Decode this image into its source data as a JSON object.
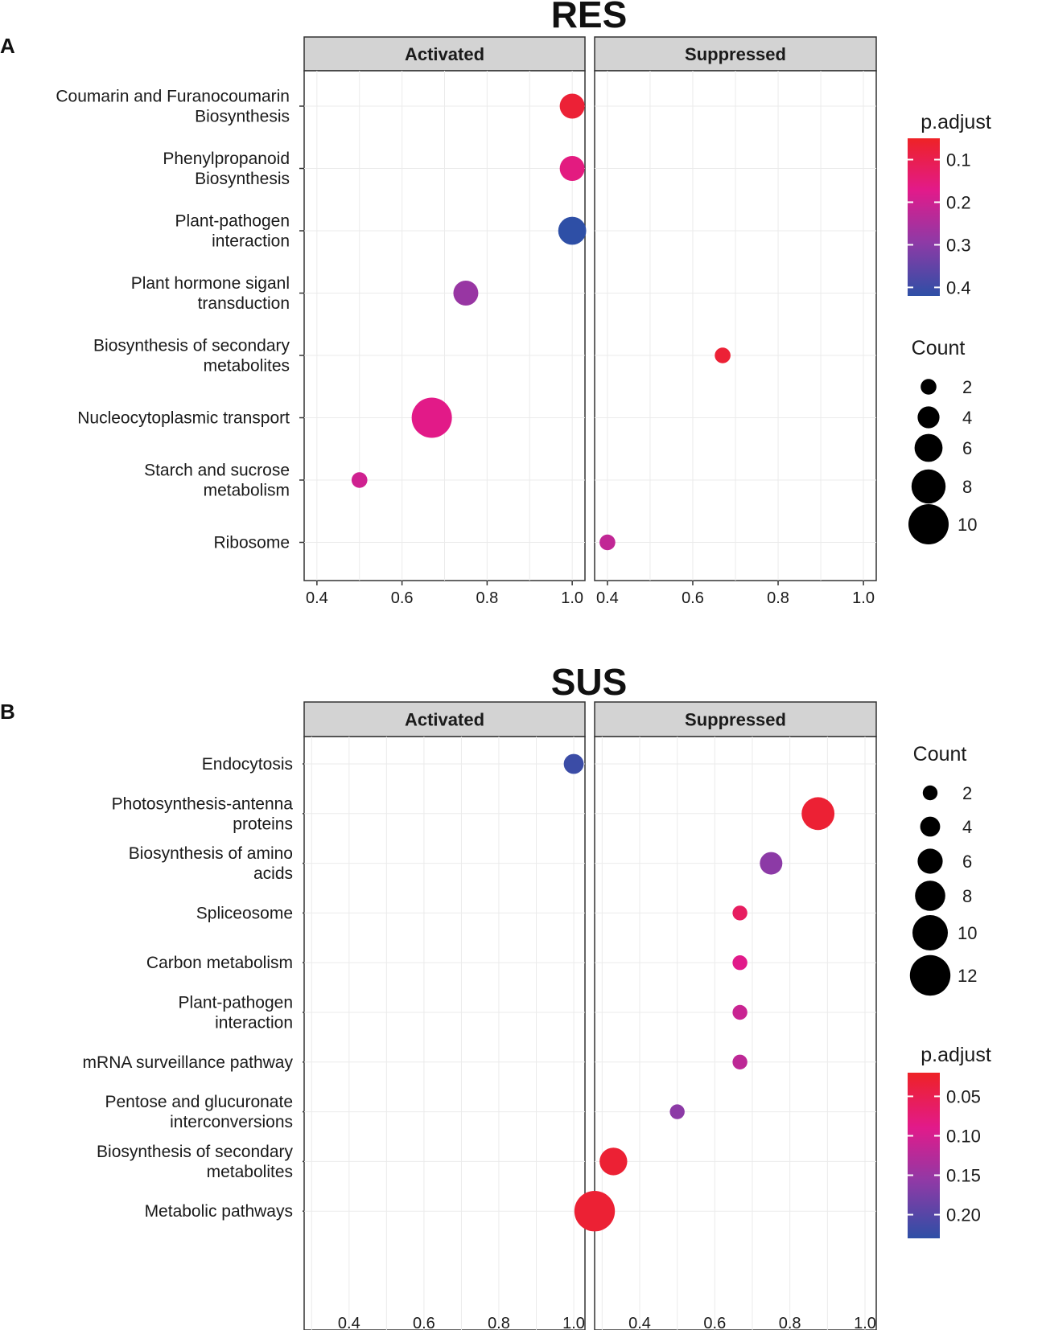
{
  "chart_data": [
    {
      "type": "scatter",
      "panel_label": "A",
      "title": "RES",
      "facets": [
        "Activated",
        "Suppressed"
      ],
      "xlim": [
        0.37,
        1.03
      ],
      "xticks": [
        0.4,
        0.6,
        0.8,
        1.0
      ],
      "xtick_labels": [
        "0.4",
        "0.6",
        "0.8",
        "1.0"
      ],
      "categories": [
        "Coumarin and Furanocoumarin\nBiosynthesis",
        "Phenylpropanoid\nBiosynthesis",
        "Plant-pathogen\ninteraction",
        "Plant hormone siganl\ntransduction",
        "Biosynthesis of secondary\nmetabolites",
        "Nucleocytoplasmic transport",
        "Starch and sucrose\nmetabolism",
        "Ribosome"
      ],
      "points": [
        {
          "category": 0,
          "facet": "Activated",
          "x": 1.0,
          "count": 5,
          "p_adjust": 0.07
        },
        {
          "category": 1,
          "facet": "Activated",
          "x": 1.0,
          "count": 5,
          "p_adjust": 0.16
        },
        {
          "category": 2,
          "facet": "Activated",
          "x": 1.0,
          "count": 6,
          "p_adjust": 0.42
        },
        {
          "category": 3,
          "facet": "Activated",
          "x": 0.75,
          "count": 5,
          "p_adjust": 0.28
        },
        {
          "category": 4,
          "facet": "Suppressed",
          "x": 0.67,
          "count": 2,
          "p_adjust": 0.07
        },
        {
          "category": 5,
          "facet": "Activated",
          "x": 0.67,
          "count": 10,
          "p_adjust": 0.17
        },
        {
          "category": 6,
          "facet": "Activated",
          "x": 0.5,
          "count": 2,
          "p_adjust": 0.2
        },
        {
          "category": 7,
          "facet": "Suppressed",
          "x": 0.4,
          "count": 2,
          "p_adjust": 0.22
        }
      ],
      "color_legend": {
        "title": "p.adjust",
        "range": [
          0.05,
          0.42
        ],
        "ticks": [
          0.1,
          0.2,
          0.3,
          0.4
        ],
        "tick_labels": [
          "0.1",
          "0.2",
          "0.3",
          "0.4"
        ]
      },
      "size_legend": {
        "title": "Count",
        "values": [
          2,
          4,
          6,
          8,
          10
        ],
        "labels": [
          "2",
          "4",
          "6",
          "8",
          "10"
        ]
      }
    },
    {
      "type": "scatter",
      "panel_label": "B",
      "title": "SUS",
      "facets": [
        "Activated",
        "Suppressed"
      ],
      "xlim": [
        0.28,
        1.03
      ],
      "xticks": [
        0.4,
        0.6,
        0.8,
        1.0
      ],
      "xtick_labels": [
        "0.4",
        "0.6",
        "0.8",
        "1.0"
      ],
      "categories": [
        "Endocytosis",
        "Photosynthesis-antenna\nproteins",
        "Biosynthesis of amino\nacids",
        "Spliceosome",
        "Carbon metabolism",
        "Plant-pathogen\ninteraction",
        "mRNA surveillance pathway",
        "Pentose and glucuronate\ninterconversions",
        "Biosynthesis of secondary\nmetabolites",
        "Metabolic pathways"
      ],
      "points": [
        {
          "category": 0,
          "facet": "Activated",
          "x": 1.0,
          "count": 4,
          "p_adjust": 0.22
        },
        {
          "category": 1,
          "facet": "Suppressed",
          "x": 0.875,
          "count": 9,
          "p_adjust": 0.03
        },
        {
          "category": 2,
          "facet": "Suppressed",
          "x": 0.75,
          "count": 5,
          "p_adjust": 0.16
        },
        {
          "category": 3,
          "facet": "Suppressed",
          "x": 0.667,
          "count": 2,
          "p_adjust": 0.06
        },
        {
          "category": 4,
          "facet": "Suppressed",
          "x": 0.667,
          "count": 2,
          "p_adjust": 0.09
        },
        {
          "category": 5,
          "facet": "Suppressed",
          "x": 0.667,
          "count": 2,
          "p_adjust": 0.11
        },
        {
          "category": 6,
          "facet": "Suppressed",
          "x": 0.667,
          "count": 2,
          "p_adjust": 0.12
        },
        {
          "category": 7,
          "facet": "Suppressed",
          "x": 0.5,
          "count": 2,
          "p_adjust": 0.16
        },
        {
          "category": 8,
          "facet": "Suppressed",
          "x": 0.33,
          "count": 7,
          "p_adjust": 0.03
        },
        {
          "category": 9,
          "facet": "Suppressed",
          "x": 0.28,
          "count": 12,
          "p_adjust": 0.03
        }
      ],
      "color_legend": {
        "title": "p.adjust",
        "range": [
          0.02,
          0.23
        ],
        "ticks": [
          0.05,
          0.1,
          0.15,
          0.2
        ],
        "tick_labels": [
          "0.05",
          "0.10",
          "0.15",
          "0.20"
        ]
      },
      "size_legend": {
        "title": "Count",
        "values": [
          2,
          4,
          6,
          8,
          10,
          12
        ],
        "labels": [
          "2",
          "4",
          "6",
          "8",
          "10",
          "12"
        ]
      }
    }
  ],
  "colors": {
    "high": "#ee2226",
    "mid": "#e21a8a",
    "low": "#2e4fa6",
    "strip_fill": "#d3d3d3",
    "grid": "#ebebeb"
  }
}
